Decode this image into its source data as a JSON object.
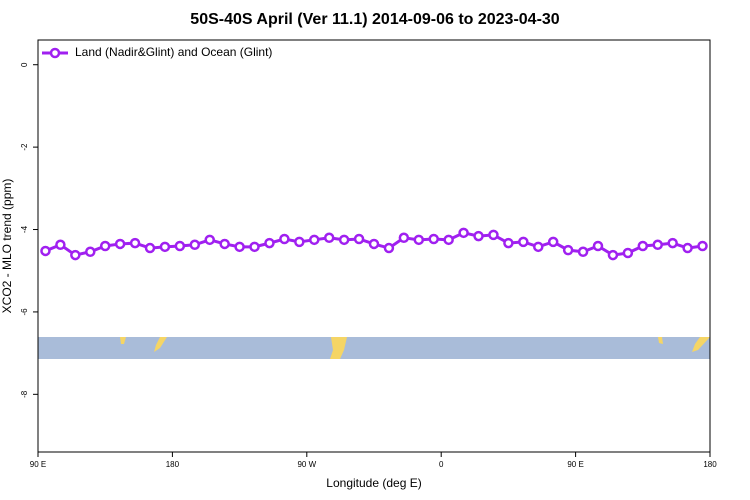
{
  "chart_data": {
    "type": "line",
    "title": "50S-40S April (Ver 11.1)   2014-09-06 to 2023-04-30",
    "xlabel": "Longitude (deg E)",
    "ylabel": "XCO2 - MLO trend (ppm)",
    "x": [
      95,
      105,
      115,
      125,
      135,
      145,
      155,
      165,
      175,
      185,
      195,
      205,
      215,
      225,
      235,
      245,
      255,
      265,
      275,
      285,
      295,
      305,
      315,
      325,
      335,
      345,
      355,
      365,
      375,
      385,
      395,
      405,
      415,
      425,
      435,
      445,
      455,
      465,
      475,
      485,
      495,
      505,
      515,
      525,
      535
    ],
    "series": [
      {
        "name": "Land (Nadir&Glint) and Ocean (Glint)",
        "color": "#a020f0",
        "values": [
          -4.52,
          -4.37,
          -4.62,
          -4.54,
          -4.4,
          -4.35,
          -4.33,
          -4.45,
          -4.42,
          -4.4,
          -4.37,
          -4.25,
          -4.35,
          -4.42,
          -4.42,
          -4.33,
          -4.23,
          -4.3,
          -4.25,
          -4.2,
          -4.25,
          -4.23,
          -4.35,
          -4.45,
          -4.2,
          -4.25,
          -4.23,
          -4.25,
          -4.08,
          -4.16,
          -4.13,
          -4.33,
          -4.3,
          -4.42,
          -4.3,
          -4.5,
          -4.54,
          -4.4,
          -4.62,
          -4.57,
          -4.4,
          -4.37,
          -4.33,
          -4.45,
          -4.4
        ]
      }
    ],
    "xlim": [
      90,
      540
    ],
    "xticks": [
      {
        "value": 90,
        "label": "90 E"
      },
      {
        "value": 180,
        "label": "180"
      },
      {
        "value": 270,
        "label": "90 W"
      },
      {
        "value": 360,
        "label": "0"
      },
      {
        "value": 450,
        "label": "90 E"
      },
      {
        "value": 540,
        "label": "180"
      }
    ],
    "ylim": [
      -9.4,
      0.6
    ],
    "yticks": [
      0,
      -2,
      -4,
      -6,
      -8
    ],
    "legend": "top-left"
  }
}
